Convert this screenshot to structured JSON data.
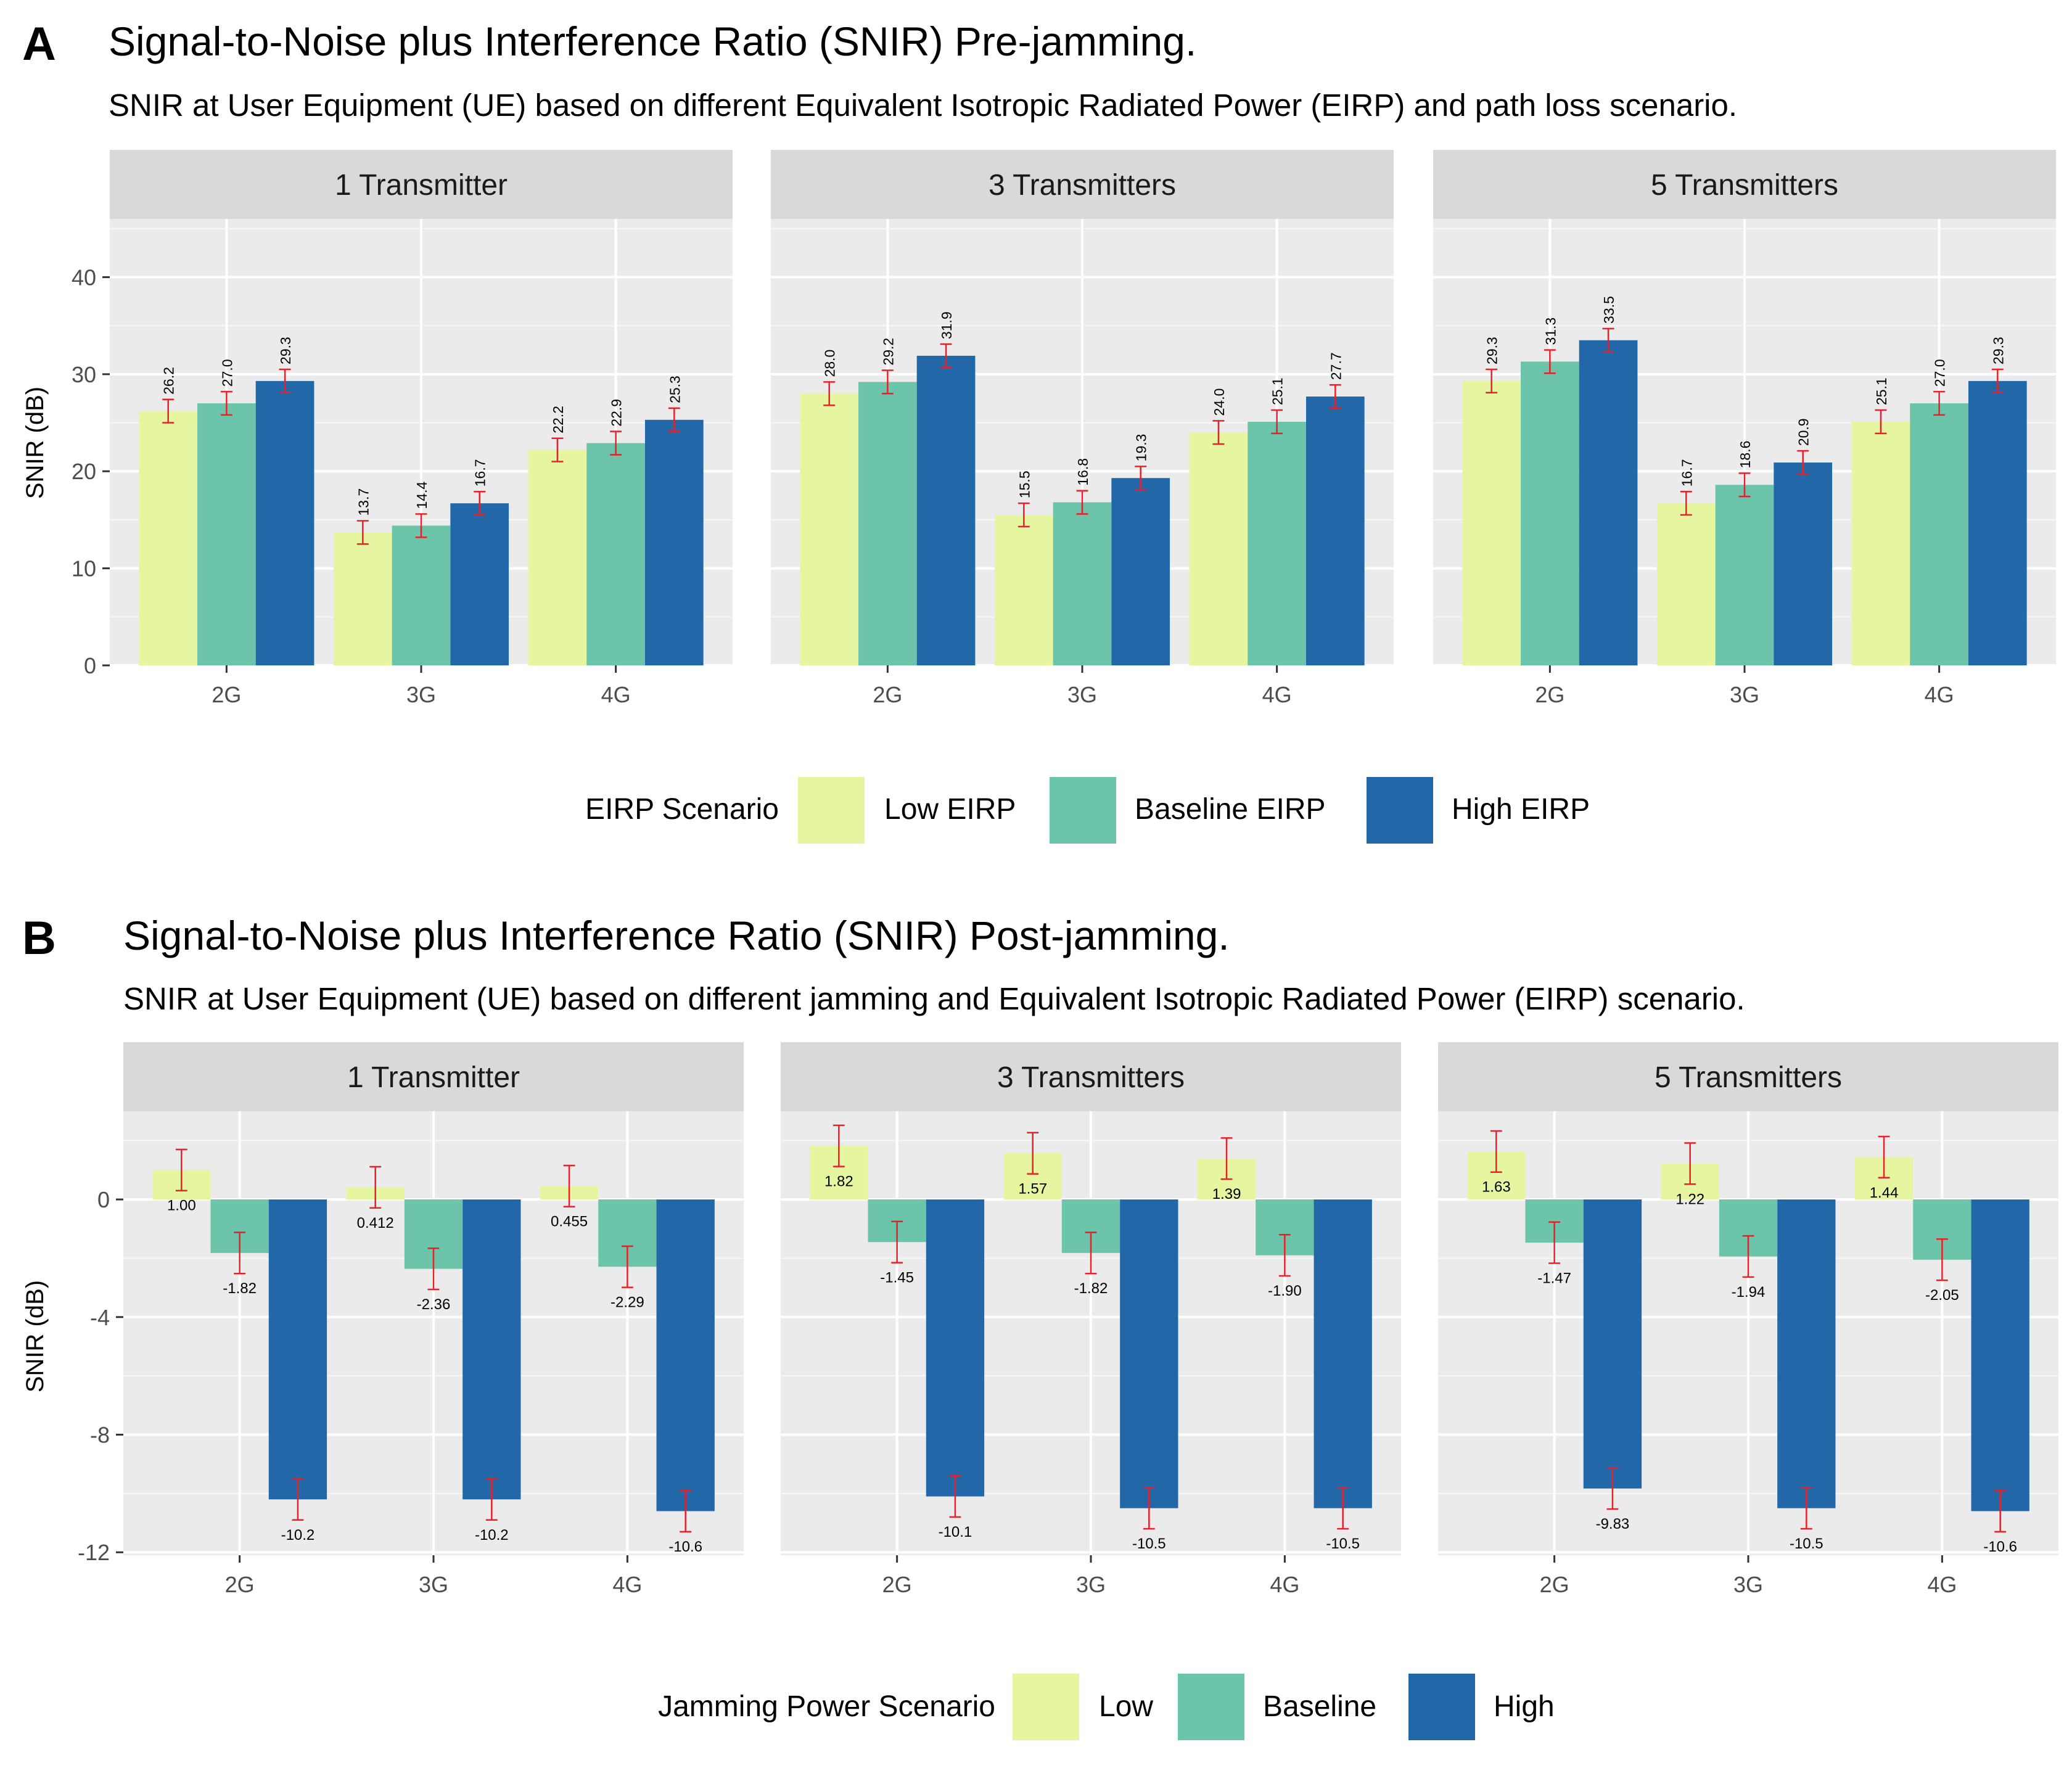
{
  "chart_data": [
    {
      "type": "bar",
      "panel_letter": "A",
      "title": "Signal-to-Noise plus Interference Ratio (SNIR) Pre-jamming.",
      "subtitle": "SNIR at User Equipment (UE) based on different Equivalent Isotropic Radiated Power (EIRP) and path loss scenario.",
      "xlabel": "",
      "ylabel": "SNIR (dB)",
      "ylim": [
        0,
        46
      ],
      "yticks": [
        "0",
        "10",
        "20",
        "30",
        "40"
      ],
      "ytick_values": [
        0,
        10,
        20,
        30,
        40
      ],
      "categories": [
        "2G",
        "3G",
        "4G"
      ],
      "grid": true,
      "legend_title": "EIRP Scenario",
      "legend_position": "bottom",
      "series": [
        {
          "name": "Low EIRP",
          "color": "#e6f5a0"
        },
        {
          "name": "Baseline EIRP",
          "color": "#6cc4aa"
        },
        {
          "name": "High EIRP",
          "color": "#2268a8"
        }
      ],
      "error_bar_color": "#e8202a",
      "facets": [
        {
          "label": "1 Transmitter",
          "values": [
            [
              26.2,
              27.0,
              29.3
            ],
            [
              13.7,
              14.4,
              16.7
            ],
            [
              22.2,
              22.9,
              25.3
            ]
          ],
          "labels": [
            [
              "26.2",
              "27.0",
              "29.3"
            ],
            [
              "13.7",
              "14.4",
              "16.7"
            ],
            [
              "22.2",
              "22.9",
              "25.3"
            ]
          ]
        },
        {
          "label": "3 Transmitters",
          "values": [
            [
              28.0,
              29.2,
              31.9
            ],
            [
              15.5,
              16.8,
              19.3
            ],
            [
              24.0,
              25.1,
              27.7
            ]
          ],
          "labels": [
            [
              "28.0",
              "29.2",
              "31.9"
            ],
            [
              "15.5",
              "16.8",
              "19.3"
            ],
            [
              "24.0",
              "25.1",
              "27.7"
            ]
          ]
        },
        {
          "label": "5 Transmitters",
          "values": [
            [
              29.3,
              31.3,
              33.5
            ],
            [
              16.7,
              18.6,
              20.9
            ],
            [
              25.1,
              27.0,
              29.3
            ]
          ],
          "labels": [
            [
              "29.3",
              "31.3",
              "33.5"
            ],
            [
              "16.7",
              "18.6",
              "20.9"
            ],
            [
              "25.1",
              "27.0",
              "29.3"
            ]
          ]
        }
      ],
      "error_half_width": 1.2
    },
    {
      "type": "bar",
      "panel_letter": "B",
      "title": "Signal-to-Noise plus Interference Ratio (SNIR) Post-jamming.",
      "subtitle": "SNIR at User Equipment (UE) based on different jamming and Equivalent Isotropic Radiated Power (EIRP) scenario.",
      "xlabel": "",
      "ylabel": "SNIR (dB)",
      "ylim": [
        -12.1,
        3.0
      ],
      "yticks": [
        "0",
        "-4",
        "-8",
        "-12"
      ],
      "ytick_values": [
        0,
        -4,
        -8,
        -12
      ],
      "categories": [
        "2G",
        "3G",
        "4G"
      ],
      "grid": true,
      "legend_title": "Jamming Power Scenario",
      "legend_position": "bottom",
      "series": [
        {
          "name": "Low",
          "color": "#e6f5a0"
        },
        {
          "name": "Baseline",
          "color": "#6cc4aa"
        },
        {
          "name": "High",
          "color": "#2268a8"
        }
      ],
      "error_bar_color": "#e8202a",
      "facets": [
        {
          "label": "1 Transmitter",
          "values": [
            [
              1.0,
              -1.82,
              -10.2
            ],
            [
              0.412,
              -2.36,
              -10.2
            ],
            [
              0.455,
              -2.29,
              -10.6
            ]
          ],
          "labels": [
            [
              "1.00",
              "-1.82",
              "-10.2"
            ],
            [
              "0.412",
              "-2.36",
              "-10.2"
            ],
            [
              "0.455",
              "-2.29",
              "-10.6"
            ]
          ]
        },
        {
          "label": "3 Transmitters",
          "values": [
            [
              1.82,
              -1.45,
              -10.1
            ],
            [
              1.57,
              -1.82,
              -10.5
            ],
            [
              1.39,
              -1.9,
              -10.5
            ]
          ],
          "labels": [
            [
              "1.82",
              "-1.45",
              "-10.1"
            ],
            [
              "1.57",
              "-1.82",
              "-10.5"
            ],
            [
              "1.39",
              "-1.90",
              "-10.5"
            ]
          ]
        },
        {
          "label": "5 Transmitters",
          "values": [
            [
              1.63,
              -1.47,
              -9.83
            ],
            [
              1.22,
              -1.94,
              -10.5
            ],
            [
              1.44,
              -2.05,
              -10.6
            ]
          ],
          "labels": [
            [
              "1.63",
              "-1.47",
              "-9.83"
            ],
            [
              "1.22",
              "-1.94",
              "-10.5"
            ],
            [
              "1.44",
              "-2.05",
              "-10.6"
            ]
          ]
        }
      ],
      "error_half_width": 0.7
    }
  ]
}
